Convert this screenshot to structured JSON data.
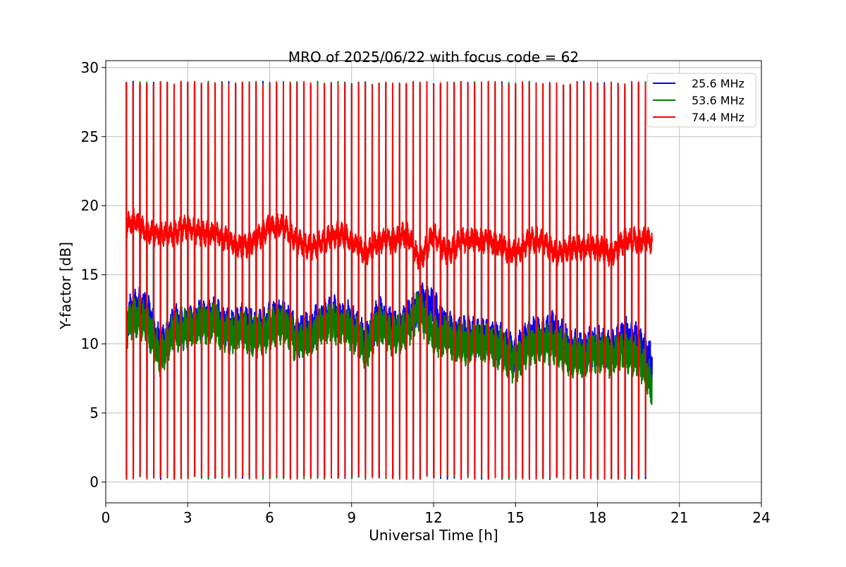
{
  "chart_data": {
    "type": "line",
    "title": "MRO of 2025/06/22 with focus code = 62",
    "xlabel": "Universal Time [h]",
    "ylabel": "Y-factor [dB]",
    "xlim": [
      0,
      24
    ],
    "ylim": [
      -1.5,
      30.5
    ],
    "xticks": [
      0,
      3,
      6,
      9,
      12,
      15,
      18,
      21,
      24
    ],
    "yticks": [
      0,
      5,
      10,
      15,
      20,
      25,
      30
    ],
    "grid": true,
    "legend_position": "upper right",
    "data_start_h": 0.75,
    "data_end_h": 20.0,
    "calibration_period_h": 0.25,
    "calibration_high_db": 29.0,
    "calibration_low_db": 0.2,
    "series": [
      {
        "name": "25.6 MHz",
        "color": "#0000ff",
        "baseline": {
          "x": [
            0.75,
            1.0,
            1.5,
            2.0,
            2.5,
            3.0,
            3.5,
            4.0,
            4.5,
            5.0,
            5.5,
            6.0,
            6.5,
            7.0,
            7.5,
            8.0,
            8.5,
            9.0,
            9.5,
            10.0,
            10.5,
            11.0,
            11.5,
            12.0,
            12.5,
            13.0,
            13.5,
            14.0,
            14.5,
            15.0,
            15.5,
            16.0,
            16.5,
            17.0,
            17.5,
            18.0,
            18.5,
            19.0,
            19.5,
            20.0
          ],
          "y": [
            11.5,
            12.5,
            12.5,
            9.5,
            11.5,
            11.0,
            12.0,
            12.0,
            11.0,
            11.5,
            11.0,
            11.5,
            12.0,
            10.5,
            11.0,
            12.0,
            12.0,
            11.5,
            10.0,
            12.0,
            11.0,
            11.5,
            13.0,
            12.5,
            11.0,
            10.5,
            10.5,
            10.5,
            10.0,
            9.0,
            10.5,
            10.5,
            11.0,
            9.5,
            9.5,
            10.0,
            9.5,
            10.5,
            10.0,
            8.5
          ]
        }
      },
      {
        "name": "53.6 MHz",
        "color": "#008000",
        "baseline": {
          "x": [
            0.75,
            1.0,
            1.5,
            2.0,
            2.5,
            3.0,
            3.5,
            4.0,
            4.5,
            5.0,
            5.5,
            6.0,
            6.5,
            7.0,
            7.5,
            8.0,
            8.5,
            9.0,
            9.5,
            10.0,
            10.5,
            11.0,
            11.5,
            12.0,
            12.5,
            13.0,
            13.5,
            14.0,
            14.5,
            15.0,
            15.5,
            16.0,
            16.5,
            17.0,
            17.5,
            18.0,
            18.5,
            19.0,
            19.5,
            20.0
          ],
          "y": [
            11.0,
            12.0,
            11.5,
            9.0,
            11.0,
            11.0,
            11.5,
            11.5,
            10.5,
            11.0,
            10.5,
            11.0,
            11.5,
            10.0,
            10.5,
            11.5,
            11.5,
            11.0,
            9.5,
            11.5,
            10.5,
            11.0,
            12.5,
            10.5,
            10.5,
            10.0,
            10.0,
            10.0,
            9.5,
            8.5,
            10.0,
            10.0,
            10.0,
            9.0,
            9.0,
            9.5,
            9.0,
            9.5,
            9.0,
            7.0
          ]
        }
      },
      {
        "name": "74.4 MHz",
        "color": "#ff0000",
        "baseline": {
          "x": [
            0.75,
            1.0,
            1.5,
            2.0,
            2.5,
            3.0,
            3.5,
            4.0,
            4.5,
            5.0,
            5.5,
            6.0,
            6.5,
            7.0,
            7.5,
            8.0,
            8.5,
            9.0,
            9.5,
            10.0,
            10.5,
            11.0,
            11.5,
            12.0,
            12.5,
            13.0,
            13.5,
            14.0,
            14.5,
            15.0,
            15.5,
            16.0,
            16.5,
            17.0,
            17.5,
            18.0,
            18.5,
            19.0,
            19.5,
            20.0
          ],
          "y": [
            18.5,
            19.0,
            18.0,
            18.0,
            18.0,
            18.5,
            18.0,
            18.0,
            17.5,
            17.0,
            17.5,
            18.5,
            18.5,
            17.5,
            17.0,
            17.5,
            18.0,
            17.5,
            16.5,
            17.5,
            17.5,
            18.0,
            16.0,
            18.0,
            16.5,
            17.5,
            17.5,
            17.5,
            17.0,
            16.5,
            17.5,
            17.5,
            16.5,
            17.0,
            17.0,
            17.0,
            16.5,
            17.5,
            17.5,
            17.5
          ]
        }
      }
    ]
  }
}
